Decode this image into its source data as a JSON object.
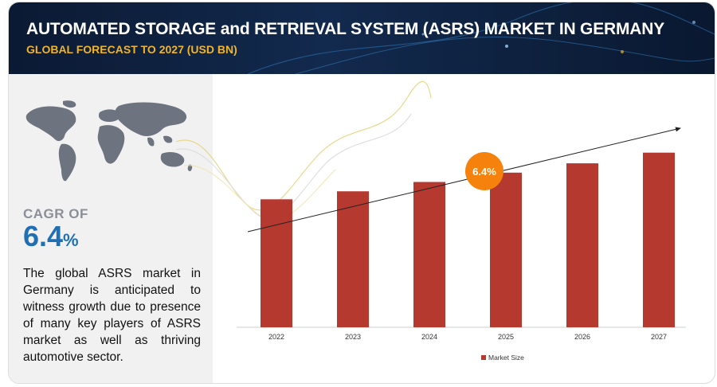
{
  "header": {
    "title": "AUTOMATED STORAGE and RETRIEVAL SYSTEM (ASRS) MARKET IN GERMANY",
    "subtitle": "GLOBAL FORECAST TO 2027 (USD BN)"
  },
  "sidebar": {
    "cagr_label": "CAGR OF",
    "cagr_value": "6.4",
    "cagr_unit": "%",
    "description": "The global ASRS market in Germany is anticipated to witness growth due to presence of many key players of ASRS market as well as thriving automotive sector."
  },
  "chart_data": {
    "type": "bar",
    "categories": [
      "2022",
      "2023",
      "2024",
      "2025",
      "2026",
      "2027"
    ],
    "series": [
      {
        "name": "Market Size",
        "values": [
          0.96,
          1.02,
          1.09,
          1.16,
          1.23,
          1.31
        ]
      }
    ],
    "ylim": [
      0,
      1.35
    ],
    "grid": false,
    "legend_position": "bottom",
    "annotation": "6.4%",
    "colors": {
      "bar": "#b5392f",
      "annotation": "#f5820d",
      "trend": "#222222"
    }
  }
}
